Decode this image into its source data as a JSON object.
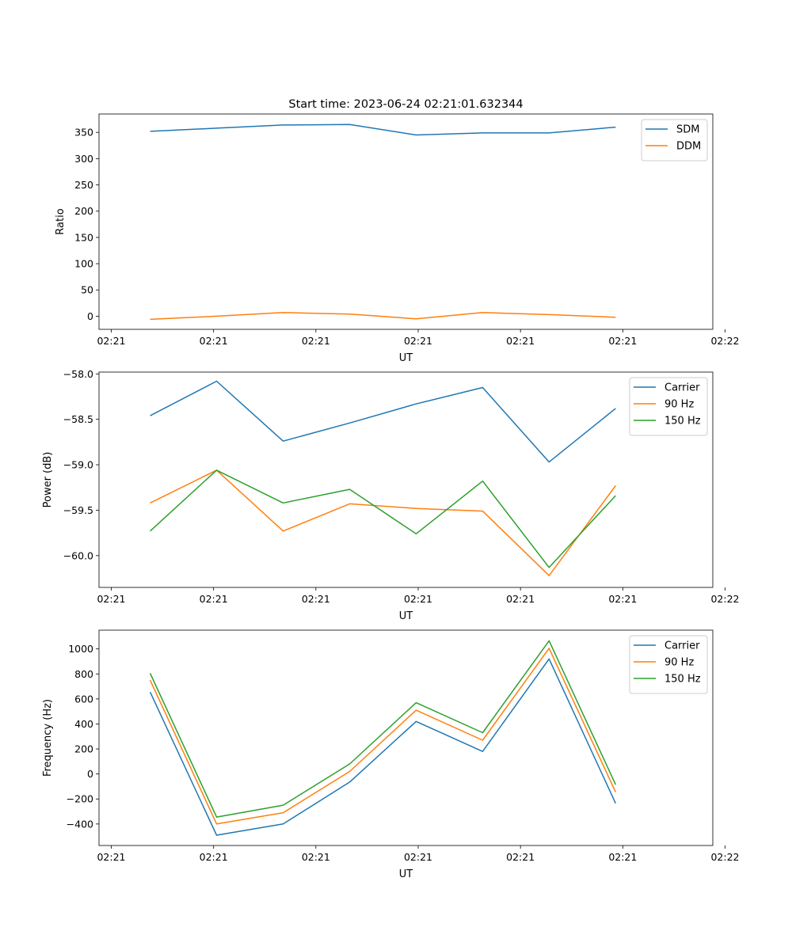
{
  "figure_title": "Start time: 2023-06-24 02:21:01.632344",
  "chart_data": [
    {
      "type": "line",
      "title": "Start time: 2023-06-24 02:21:01.632344",
      "xlabel": "UT",
      "ylabel": "Ratio",
      "x": [
        0.5,
        1.15,
        1.8,
        2.45,
        3.1,
        3.75,
        4.4,
        5.05
      ],
      "xlim": [
        0,
        6.0
      ],
      "xticks": [
        0.12,
        1.12,
        2.12,
        3.12,
        4.12,
        5.12,
        6.12
      ],
      "xtick_labels": [
        "02:21",
        "02:21",
        "02:21",
        "02:21",
        "02:21",
        "02:21",
        "02:22"
      ],
      "ylim": [
        -25,
        385
      ],
      "yticks": [
        0,
        50,
        100,
        150,
        200,
        250,
        300,
        350
      ],
      "ytick_labels": [
        "0",
        "50",
        "100",
        "150",
        "200",
        "250",
        "300",
        "350"
      ],
      "series": [
        {
          "name": "SDM",
          "color": "#1f77b4",
          "values": [
            352,
            358,
            364,
            365,
            345,
            349,
            349,
            360
          ]
        },
        {
          "name": "DDM",
          "color": "#ff7f0e",
          "values": [
            -6,
            0,
            7,
            4,
            -5,
            7,
            3,
            -2
          ]
        }
      ],
      "legend": "upper right",
      "grid": false
    },
    {
      "type": "line",
      "title": "",
      "xlabel": "UT",
      "ylabel": "Power (dB)",
      "x": [
        0.5,
        1.15,
        1.8,
        2.45,
        3.1,
        3.75,
        4.4,
        5.05
      ],
      "xlim": [
        0,
        6.0
      ],
      "xticks": [
        0.12,
        1.12,
        2.12,
        3.12,
        4.12,
        5.12,
        6.12
      ],
      "xtick_labels": [
        "02:21",
        "02:21",
        "02:21",
        "02:21",
        "02:21",
        "02:21",
        "02:22"
      ],
      "ylim": [
        -60.35,
        -57.98
      ],
      "yticks": [
        -60.0,
        -59.5,
        -59.0,
        -58.5,
        -58.0
      ],
      "ytick_labels": [
        "−60.0",
        "−59.5",
        "−59.0",
        "−58.5",
        "−58.0"
      ],
      "series": [
        {
          "name": "Carrier",
          "color": "#1f77b4",
          "values": [
            -58.46,
            -58.08,
            -58.74,
            -58.54,
            -58.33,
            -58.15,
            -58.97,
            -58.38
          ]
        },
        {
          "name": "90 Hz",
          "color": "#ff7f0e",
          "values": [
            -59.42,
            -59.06,
            -59.73,
            -59.43,
            -59.48,
            -59.51,
            -60.22,
            -59.23
          ]
        },
        {
          "name": "150 Hz",
          "color": "#2ca02c",
          "values": [
            -59.73,
            -59.06,
            -59.42,
            -59.27,
            -59.76,
            -59.18,
            -60.13,
            -59.34
          ]
        }
      ],
      "legend": "upper right",
      "grid": false
    },
    {
      "type": "line",
      "title": "",
      "xlabel": "UT",
      "ylabel": "Frequency (Hz)",
      "x": [
        0.5,
        1.15,
        1.8,
        2.45,
        3.1,
        3.75,
        4.4,
        5.05
      ],
      "xlim": [
        0,
        6.0
      ],
      "xticks": [
        0.12,
        1.12,
        2.12,
        3.12,
        4.12,
        5.12,
        6.12
      ],
      "xtick_labels": [
        "02:21",
        "02:21",
        "02:21",
        "02:21",
        "02:21",
        "02:21",
        "02:22"
      ],
      "ylim": [
        -572,
        1150
      ],
      "yticks": [
        -400,
        -200,
        0,
        200,
        400,
        600,
        800,
        1000
      ],
      "ytick_labels": [
        "−400",
        "−200",
        "0",
        "200",
        "400",
        "600",
        "800",
        "1000"
      ],
      "series": [
        {
          "name": "Carrier",
          "color": "#1f77b4",
          "values": [
            655,
            -490,
            -400,
            -65,
            420,
            180,
            920,
            -235
          ]
        },
        {
          "name": "90 Hz",
          "color": "#ff7f0e",
          "values": [
            750,
            -400,
            -310,
            20,
            510,
            270,
            1005,
            -145
          ]
        },
        {
          "name": "150 Hz",
          "color": "#2ca02c",
          "values": [
            805,
            -345,
            -250,
            80,
            570,
            330,
            1065,
            -85
          ]
        }
      ],
      "legend": "upper right",
      "grid": false
    }
  ]
}
